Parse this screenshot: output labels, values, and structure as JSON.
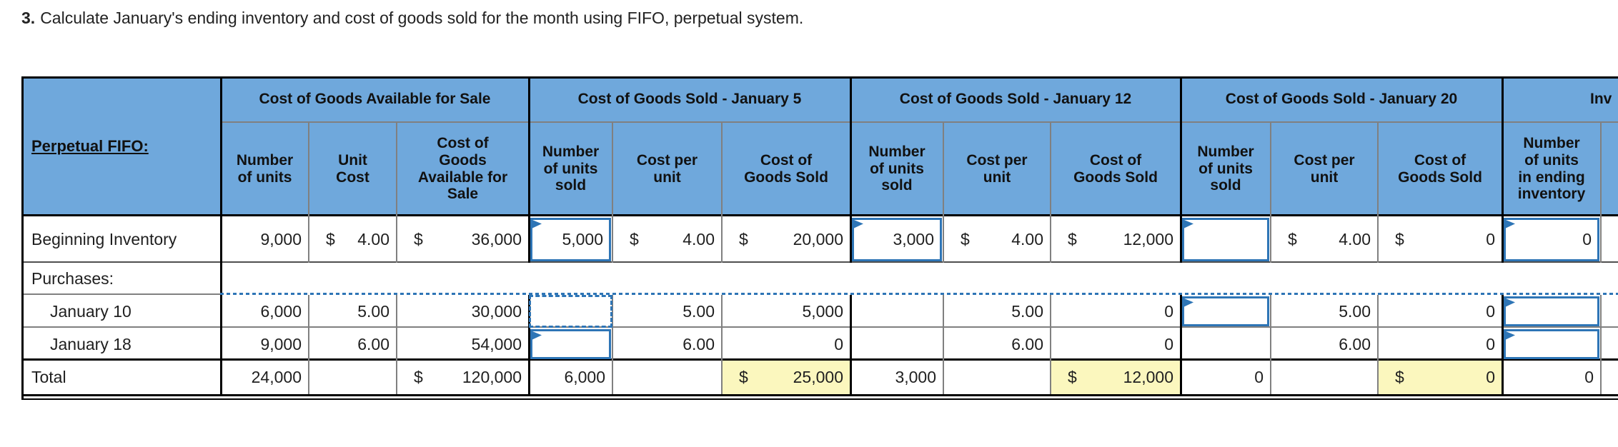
{
  "title": {
    "prefix": "3.",
    "text": "Calculate January's ending inventory and cost of goods sold for the month using FIFO, perpetual system."
  },
  "colors": {
    "header_blue": "#6FA8DC",
    "input_blue": "#2E75B6",
    "highlight_yellow": "#FBF7BE",
    "grid_gray": "#808080",
    "line_black": "#000000"
  },
  "table": {
    "corner_label": "Perpetual FIFO:",
    "groups": [
      {
        "key": "goods_available_for_sale",
        "label": "Cost of Goods Available for Sale"
      },
      {
        "key": "cogs_january_5",
        "label": "Cost of Goods Sold - January 5"
      },
      {
        "key": "cogs_january_12",
        "label": "Cost of Goods Sold - January 12"
      },
      {
        "key": "cogs_january_20",
        "label": "Cost of Goods Sold - January 20"
      },
      {
        "key": "inventory",
        "label": "Inv"
      }
    ],
    "columns": [
      {
        "key": "cgafs_units",
        "header": "Number of units"
      },
      {
        "key": "cgafs_unit_cost",
        "header": "Unit Cost"
      },
      {
        "key": "cgafs_total",
        "header": "Cost of Goods Available for Sale"
      },
      {
        "key": "j5_units_sold",
        "header": "Number of units sold"
      },
      {
        "key": "j5_cost_per_unit",
        "header": "Cost per unit"
      },
      {
        "key": "j5_cogs",
        "header": "Cost of Goods Sold"
      },
      {
        "key": "j12_units_sold",
        "header": "Number of units sold"
      },
      {
        "key": "j12_cost_per_unit",
        "header": "Cost per unit"
      },
      {
        "key": "j12_cogs",
        "header": "Cost of Goods Sold"
      },
      {
        "key": "j20_units_sold",
        "header": "Number of units sold"
      },
      {
        "key": "j20_cost_per_unit",
        "header": "Cost per unit"
      },
      {
        "key": "j20_cogs",
        "header": "Cost of Goods Sold"
      },
      {
        "key": "ending_units",
        "header": "Number of units in ending inventory"
      }
    ],
    "rows": [
      {
        "label": "Beginning Inventory",
        "cells": [
          {
            "v": "9,000"
          },
          {
            "d": "$",
            "v": "4.00"
          },
          {
            "d": "$",
            "v": "36,000"
          },
          {
            "v": "5,000",
            "input": true
          },
          {
            "d": "$",
            "v": "4.00"
          },
          {
            "d": "$",
            "v": "20,000"
          },
          {
            "v": "3,000",
            "input": true
          },
          {
            "d": "$",
            "v": "4.00"
          },
          {
            "d": "$",
            "v": "12,000"
          },
          {
            "v": "",
            "input": true
          },
          {
            "d": "$",
            "v": "4.00"
          },
          {
            "d": "$",
            "v": "0"
          },
          {
            "v": "0",
            "input": true
          }
        ]
      },
      {
        "label": "Purchases:",
        "cells": []
      },
      {
        "label": "January 10",
        "indent": true,
        "cells": [
          {
            "v": "6,000"
          },
          {
            "v": "5.00"
          },
          {
            "v": "30,000"
          },
          {
            "v": "",
            "active": true
          },
          {
            "v": "5.00"
          },
          {
            "v": "5,000"
          },
          {
            "v": ""
          },
          {
            "v": "5.00"
          },
          {
            "v": "0"
          },
          {
            "v": "",
            "input": true
          },
          {
            "v": "5.00"
          },
          {
            "v": "0"
          },
          {
            "v": "",
            "input": true
          }
        ]
      },
      {
        "label": "January 18",
        "indent": true,
        "cells": [
          {
            "v": "9,000"
          },
          {
            "v": "6.00"
          },
          {
            "v": "54,000"
          },
          {
            "v": "",
            "input": true
          },
          {
            "v": "6.00"
          },
          {
            "v": "0"
          },
          {
            "v": ""
          },
          {
            "v": "6.00"
          },
          {
            "v": "0"
          },
          {
            "v": ""
          },
          {
            "v": "6.00"
          },
          {
            "v": "0"
          },
          {
            "v": "",
            "input": true
          }
        ]
      },
      {
        "label": "Total",
        "cells": [
          {
            "v": "24,000"
          },
          {
            "v": ""
          },
          {
            "d": "$",
            "v": "120,000"
          },
          {
            "v": "6,000"
          },
          {
            "v": ""
          },
          {
            "d": "$",
            "v": "25,000",
            "hl": true
          },
          {
            "v": "3,000"
          },
          {
            "v": ""
          },
          {
            "d": "$",
            "v": "12,000",
            "hl": true
          },
          {
            "v": "0"
          },
          {
            "v": ""
          },
          {
            "d": "$",
            "v": "0",
            "hl": true
          },
          {
            "v": "0"
          }
        ]
      }
    ]
  }
}
